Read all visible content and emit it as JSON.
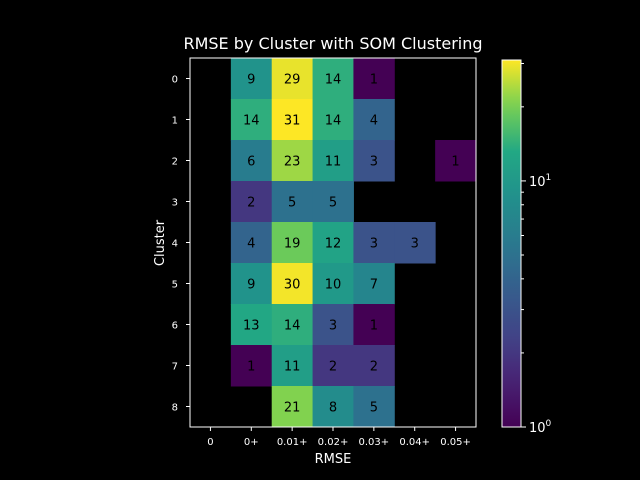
{
  "chart_data": {
    "type": "heatmap",
    "title": "RMSE by Cluster with SOM Clustering",
    "xlabel": "RMSE",
    "ylabel": "Cluster",
    "x_categories": [
      "0",
      "0+",
      "0.01+",
      "0.02+",
      "0.03+",
      "0.04+",
      "0.05+"
    ],
    "y_categories": [
      "0",
      "1",
      "2",
      "3",
      "4",
      "5",
      "6",
      "7",
      "8"
    ],
    "values": [
      [
        null,
        9,
        29,
        14,
        1,
        null,
        null
      ],
      [
        null,
        14,
        31,
        14,
        4,
        null,
        null
      ],
      [
        null,
        6,
        23,
        11,
        3,
        null,
        1
      ],
      [
        null,
        2,
        5,
        5,
        null,
        null,
        null
      ],
      [
        null,
        4,
        19,
        12,
        3,
        3,
        null
      ],
      [
        null,
        9,
        30,
        10,
        7,
        null,
        null
      ],
      [
        null,
        13,
        14,
        3,
        1,
        null,
        null
      ],
      [
        null,
        1,
        11,
        2,
        2,
        null,
        null
      ],
      [
        null,
        null,
        21,
        8,
        5,
        null,
        null
      ]
    ],
    "colormap": "viridis",
    "color_scale": "log",
    "colorbar": {
      "vmin": 1,
      "vmax": 31,
      "tick_labels": [
        {
          "base": "10",
          "exp": "0",
          "value": 1
        },
        {
          "base": "10",
          "exp": "1",
          "value": 10
        }
      ]
    },
    "background_color": "#000000",
    "cell_text_color": "#000000"
  }
}
